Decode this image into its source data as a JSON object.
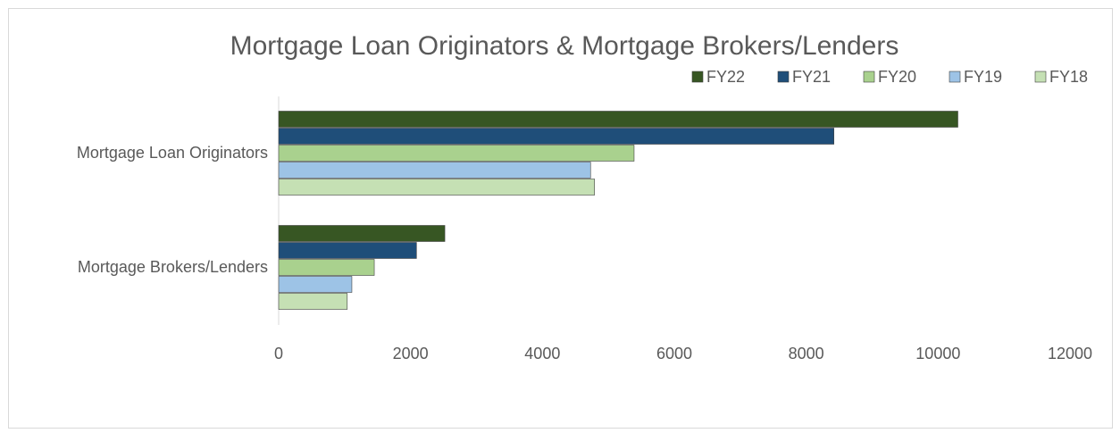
{
  "chart_data": {
    "type": "hbar",
    "title": "Mortgage Loan Originators & Mortgage Brokers/Lenders",
    "categories": [
      "Mortgage Loan Originators",
      "Mortgage Brokers/Lenders"
    ],
    "series": [
      {
        "name": "FY22",
        "color": "#375623",
        "values": [
          10300,
          2520
        ]
      },
      {
        "name": "FY21",
        "color": "#1f4e79",
        "values": [
          8420,
          2090
        ]
      },
      {
        "name": "FY20",
        "color": "#a9d18e",
        "values": [
          5390,
          1450
        ]
      },
      {
        "name": "FY19",
        "color": "#9dc3e6",
        "values": [
          4730,
          1110
        ]
      },
      {
        "name": "FY18",
        "color": "#c5e0b4",
        "values": [
          4790,
          1040
        ]
      }
    ],
    "xlim": [
      0,
      12000
    ],
    "xticks": [
      0,
      2000,
      4000,
      6000,
      8000,
      10000,
      12000
    ],
    "grid": false,
    "legend": "top-right"
  }
}
